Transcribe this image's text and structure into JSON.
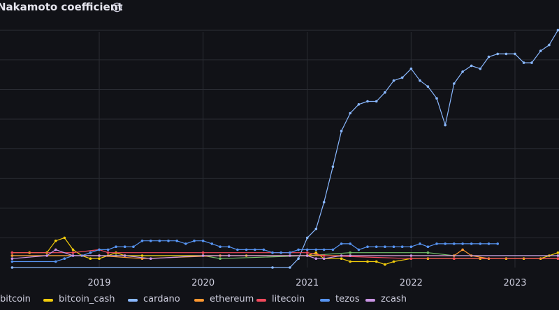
{
  "panel": {
    "title": "Nakamoto coefficient",
    "info_icon": "info-circle-icon"
  },
  "chart_data": {
    "type": "line",
    "title": "Nakamoto coefficient",
    "x_ticks": [
      "2019",
      "2020",
      "2021",
      "2022",
      "2023"
    ],
    "grid": true,
    "legend_position": "bottom",
    "series": [
      {
        "name": "bitcoin",
        "color": "#73bf69",
        "x": [
          "2018-03-01",
          "2019-03-01",
          "2020-01-01",
          "2020-03-01",
          "2021-01-01",
          "2021-06-01",
          "2022-03-01",
          "2022-06-01",
          "2023-06-01"
        ],
        "values": [
          4,
          4,
          4,
          3,
          4,
          5,
          5,
          4,
          4
        ]
      },
      {
        "name": "bitcoin_cash",
        "color": "#f2cc0c",
        "x": [
          "2018-03-01",
          "2018-05-01",
          "2018-07-01",
          "2018-08-01",
          "2018-09-01",
          "2018-10-01",
          "2018-11-01",
          "2018-12-01",
          "2019-01-01",
          "2019-02-01",
          "2019-03-01",
          "2019-04-01",
          "2019-06-01",
          "2020-01-01",
          "2020-06-01",
          "2021-01-01",
          "2021-02-01",
          "2021-03-01",
          "2021-05-01",
          "2021-06-01",
          "2021-08-01",
          "2021-09-01",
          "2021-10-01",
          "2021-11-01",
          "2022-01-01",
          "2022-03-01",
          "2022-06-01",
          "2022-09-01",
          "2022-12-01",
          "2023-02-01",
          "2023-04-01",
          "2023-05-01",
          "2023-06-01"
        ],
        "values": [
          5,
          5,
          5,
          9,
          10,
          6,
          4,
          3,
          3,
          4,
          5,
          4,
          4,
          4,
          4,
          4,
          5,
          3,
          3,
          2,
          2,
          2,
          1,
          2,
          3,
          3,
          3,
          3,
          3,
          3,
          3,
          4,
          5
        ]
      },
      {
        "name": "cardano",
        "color": "#8ab8ff",
        "x": [
          "2018-03-01",
          "2020-09-01",
          "2020-11-01",
          "2020-12-01",
          "2021-01-01",
          "2021-02-01",
          "2021-03-01",
          "2021-04-01",
          "2021-05-01",
          "2021-06-01",
          "2021-07-01",
          "2021-08-01",
          "2021-09-01",
          "2021-10-01",
          "2021-11-01",
          "2021-12-01",
          "2022-01-01",
          "2022-02-01",
          "2022-03-01",
          "2022-04-01",
          "2022-05-01",
          "2022-06-01",
          "2022-07-01",
          "2022-08-01",
          "2022-09-01",
          "2022-10-01",
          "2022-11-01",
          "2022-12-01",
          "2023-01-01",
          "2023-02-01",
          "2023-03-01",
          "2023-04-01",
          "2023-05-01",
          "2023-06-01"
        ],
        "values": [
          0,
          0,
          0,
          3,
          10,
          13,
          22,
          34,
          46,
          52,
          55,
          56,
          56,
          59,
          63,
          64,
          67,
          63,
          61,
          57,
          48,
          62,
          66,
          68,
          67,
          71,
          72,
          72,
          72,
          69,
          69,
          73,
          75,
          80
        ]
      },
      {
        "name": "ethereum",
        "color": "#ff9830",
        "x": [
          "2018-03-01",
          "2019-01-01",
          "2019-06-01",
          "2020-03-01",
          "2021-01-01",
          "2021-06-01",
          "2022-06-01",
          "2022-07-01",
          "2022-08-01",
          "2022-10-01",
          "2023-06-01"
        ],
        "values": [
          4,
          4,
          3,
          4,
          4,
          4,
          4,
          6,
          4,
          3,
          3
        ]
      },
      {
        "name": "litecoin",
        "color": "#f2495c",
        "x": [
          "2018-03-01",
          "2018-10-01",
          "2019-01-01",
          "2019-02-01",
          "2020-01-01",
          "2021-01-01",
          "2021-03-01",
          "2022-01-01",
          "2022-06-01",
          "2023-06-01"
        ],
        "values": [
          5,
          5,
          6,
          5,
          5,
          5,
          4,
          3,
          3,
          3
        ]
      },
      {
        "name": "tezos",
        "color": "#5794f2",
        "x": [
          "2018-03-01",
          "2018-08-01",
          "2018-09-01",
          "2018-10-01",
          "2018-11-01",
          "2018-12-01",
          "2019-01-01",
          "2019-02-01",
          "2019-03-01",
          "2019-04-01",
          "2019-05-01",
          "2019-06-01",
          "2019-07-01",
          "2019-08-01",
          "2019-09-01",
          "2019-10-01",
          "2019-11-01",
          "2019-12-01",
          "2020-01-01",
          "2020-02-01",
          "2020-03-01",
          "2020-04-01",
          "2020-05-01",
          "2020-06-01",
          "2020-07-01",
          "2020-08-01",
          "2020-09-01",
          "2020-10-01",
          "2020-11-01",
          "2020-12-01",
          "2021-01-01",
          "2021-02-01",
          "2021-03-01",
          "2021-04-01",
          "2021-05-01",
          "2021-06-01",
          "2021-07-01",
          "2021-08-01",
          "2021-09-01",
          "2021-10-01",
          "2021-11-01",
          "2021-12-01",
          "2022-01-01",
          "2022-02-01",
          "2022-03-01",
          "2022-04-01",
          "2022-05-01",
          "2022-06-01",
          "2022-07-01",
          "2022-08-01",
          "2022-09-01",
          "2022-10-01",
          "2022-11-01"
        ],
        "values": [
          2,
          2,
          3,
          4,
          4,
          5,
          6,
          6,
          7,
          7,
          7,
          9,
          9,
          9,
          9,
          9,
          8,
          9,
          9,
          8,
          7,
          7,
          6,
          6,
          6,
          6,
          5,
          5,
          5,
          6,
          6,
          6,
          6,
          6,
          8,
          8,
          6,
          7,
          7,
          7,
          7,
          7,
          7,
          8,
          7,
          8,
          8,
          8,
          8,
          8,
          8,
          8,
          8
        ]
      },
      {
        "name": "zcash",
        "color": "#ca95e5",
        "x": [
          "2018-03-01",
          "2018-07-01",
          "2018-08-01",
          "2018-10-01",
          "2019-01-01",
          "2019-04-01",
          "2019-07-01",
          "2020-01-01",
          "2020-04-01",
          "2020-11-01",
          "2021-01-01",
          "2021-02-01",
          "2021-03-01",
          "2021-05-01",
          "2021-06-01",
          "2022-01-01",
          "2023-06-01"
        ],
        "values": [
          3,
          4,
          6,
          4,
          4,
          4,
          3,
          4,
          4,
          4,
          4,
          3,
          3,
          4,
          4,
          4,
          4
        ]
      }
    ]
  }
}
